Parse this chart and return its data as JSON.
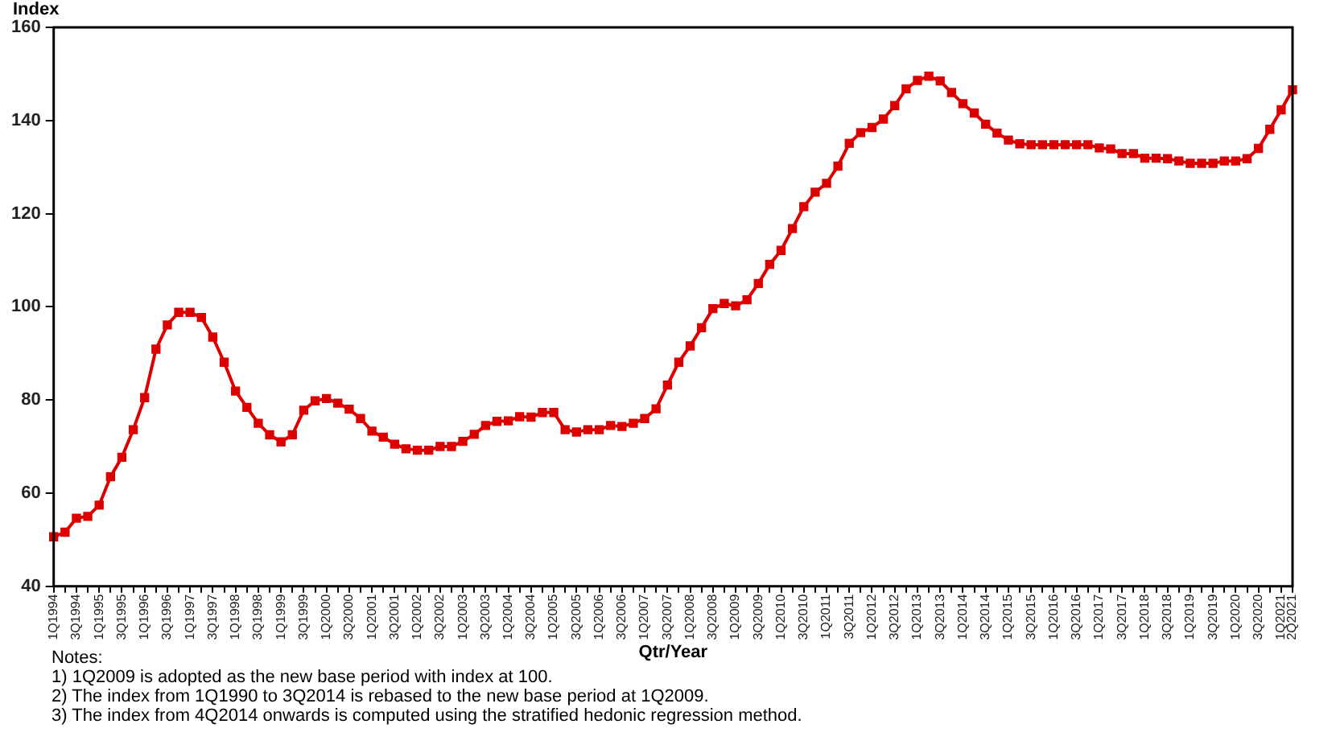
{
  "chart_data": {
    "type": "line",
    "ylabel": "Index",
    "xlabel": "Qtr/Year",
    "categories": [
      "1Q1994",
      null,
      "3Q1994",
      null,
      "1Q1995",
      null,
      "3Q1995",
      null,
      "1Q1996",
      null,
      "3Q1996",
      null,
      "1Q1997",
      null,
      "3Q1997",
      null,
      "1Q1998",
      null,
      "3Q1998",
      null,
      "1Q1999",
      null,
      "3Q1999",
      null,
      "1Q2000",
      null,
      "3Q2000",
      null,
      "1Q2001",
      null,
      "3Q2001",
      null,
      "1Q2002",
      null,
      "3Q2002",
      null,
      "1Q2003",
      null,
      "3Q2003",
      null,
      "1Q2004",
      null,
      "3Q2004",
      null,
      "1Q2005",
      null,
      "3Q2005",
      null,
      "1Q2006",
      null,
      "3Q2006",
      null,
      "1Q2007",
      null,
      "3Q2007",
      null,
      "1Q2008",
      null,
      "3Q2008",
      null,
      "1Q2009",
      null,
      "3Q2009",
      null,
      "1Q2010",
      null,
      "3Q2010",
      null,
      "1Q2011",
      null,
      "3Q2011",
      null,
      "1Q2012",
      null,
      "3Q2012",
      null,
      "1Q2013",
      null,
      "3Q2013",
      null,
      "1Q2014",
      null,
      "3Q2014",
      null,
      "1Q2015",
      null,
      "3Q2015",
      null,
      "1Q2016",
      null,
      "3Q2016",
      null,
      "1Q2017",
      null,
      "3Q2017",
      null,
      "1Q2018",
      null,
      "3Q2018",
      null,
      "1Q2019",
      null,
      "3Q2019",
      null,
      "1Q2020",
      null,
      "3Q2020",
      null,
      "1Q2021",
      "2Q2021"
    ],
    "series": [
      {
        "color": "#dd0000",
        "values": [
          50.6,
          51.6,
          54.6,
          55,
          57.4,
          63.5,
          67.7,
          73.6,
          80.5,
          90.9,
          96.1,
          98.8,
          98.8,
          97.7,
          93.5,
          88.1,
          81.9,
          78.4,
          75,
          72.5,
          71,
          72.5,
          77.8,
          79.8,
          80.3,
          79.3,
          78,
          76,
          73.3,
          72,
          70.5,
          69.5,
          69.2,
          69.2,
          70,
          70,
          71.1,
          72.6,
          74.5,
          75.4,
          75.5,
          76.4,
          76.3,
          77.3,
          77.3,
          73.6,
          73.1,
          73.6,
          73.6,
          74.5,
          74.3,
          75,
          76,
          78.1,
          83.2,
          88.1,
          91.6,
          95.5,
          99.6,
          100.7,
          100.2,
          101.5,
          105,
          109.1,
          112.1,
          116.8,
          121.5,
          124.6,
          126.5,
          130.2,
          135.1,
          137.4,
          138.5,
          140.3,
          143.2,
          146.8,
          148.6,
          149.5,
          148.5,
          146,
          143.6,
          141.6,
          139.2,
          137.3,
          135.8,
          135,
          134.8,
          134.8,
          134.8,
          134.8,
          134.8,
          134.8,
          134.1,
          133.9,
          132.9,
          132.9,
          131.9,
          131.9,
          131.8,
          131.3,
          130.8,
          130.8,
          130.8,
          131.3,
          131.3,
          131.8,
          134,
          138.1,
          142.3,
          146.6
        ]
      }
    ],
    "ylim": [
      40,
      160
    ],
    "yticks": [
      40,
      60,
      80,
      100,
      120,
      140,
      160
    ],
    "grid": false,
    "legend": false,
    "marker": "square",
    "line_style": "solid",
    "annotations": [
      "Notes:",
      "1) 1Q2009 is adopted as the new base period with index at 100.",
      "2) The index from 1Q1990 to 3Q2014 is rebased to the new base period at 1Q2009.",
      "3) The index from 4Q2014 onwards is computed using the stratified hedonic regression method."
    ]
  }
}
